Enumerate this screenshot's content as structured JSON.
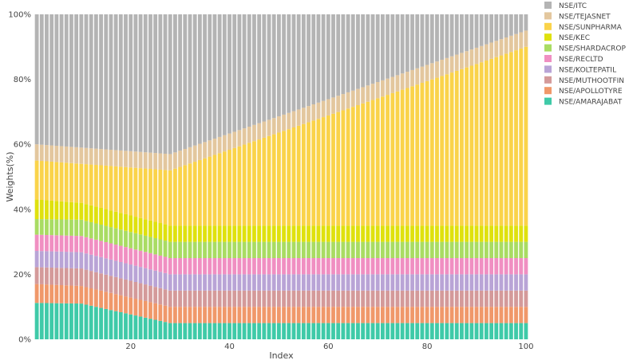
{
  "chart_data": {
    "type": "bar",
    "stacked": true,
    "xlabel": "Index",
    "ylabel": "Weights(%)",
    "x_range": [
      1,
      100
    ],
    "ylim": [
      0,
      100
    ],
    "x_ticks": [
      20,
      40,
      60,
      80,
      100
    ],
    "y_ticks": [
      0,
      20,
      40,
      60,
      80,
      100
    ],
    "y_tick_format": "{v}%",
    "legend_position": "top-right",
    "grid": false,
    "series": [
      {
        "name": "NSE/AMARAJABAT",
        "color": "#3fcaa8",
        "knots": [
          [
            1,
            11.2
          ],
          [
            10,
            11
          ],
          [
            28,
            5
          ],
          [
            100,
            5
          ]
        ]
      },
      {
        "name": "NSE/APOLLOTYRE",
        "color": "#f0986a",
        "knots": [
          [
            1,
            5.8
          ],
          [
            10,
            5.4
          ],
          [
            28,
            5
          ],
          [
            100,
            5
          ]
        ]
      },
      {
        "name": "NSE/MUTHOOTFIN",
        "color": "#d49a9a",
        "knots": [
          [
            1,
            5.2
          ],
          [
            10,
            5.4
          ],
          [
            28,
            5
          ],
          [
            100,
            5
          ]
        ]
      },
      {
        "name": "NSE/KOLTEPATIL",
        "color": "#b9a4d6",
        "knots": [
          [
            1,
            5
          ],
          [
            10,
            5
          ],
          [
            28,
            5
          ],
          [
            100,
            5
          ]
        ]
      },
      {
        "name": "NSE/RECLTD",
        "color": "#f08fc2",
        "knots": [
          [
            1,
            5
          ],
          [
            10,
            5
          ],
          [
            28,
            5
          ],
          [
            100,
            5
          ]
        ]
      },
      {
        "name": "NSE/SHARDACROP",
        "color": "#a9dc63",
        "knots": [
          [
            1,
            4.8
          ],
          [
            10,
            5
          ],
          [
            28,
            5
          ],
          [
            100,
            5
          ]
        ]
      },
      {
        "name": "NSE/KEC",
        "color": "#dfe10e",
        "knots": [
          [
            1,
            6
          ],
          [
            10,
            5.2
          ],
          [
            28,
            5
          ],
          [
            100,
            5
          ]
        ]
      },
      {
        "name": "NSE/SUNPHARMA",
        "color": "#fad34a",
        "knots": [
          [
            1,
            12
          ],
          [
            10,
            12
          ],
          [
            28,
            17
          ],
          [
            100,
            55
          ]
        ]
      },
      {
        "name": "NSE/TEJASNET",
        "color": "#e3c79e",
        "knots": [
          [
            1,
            5
          ],
          [
            10,
            5
          ],
          [
            28,
            5
          ],
          [
            100,
            5
          ]
        ]
      },
      {
        "name": "NSE/ITC",
        "color": "#b4b4b4",
        "knots": [
          [
            1,
            40
          ],
          [
            10,
            41
          ],
          [
            28,
            43
          ],
          [
            100,
            5
          ]
        ]
      }
    ]
  }
}
